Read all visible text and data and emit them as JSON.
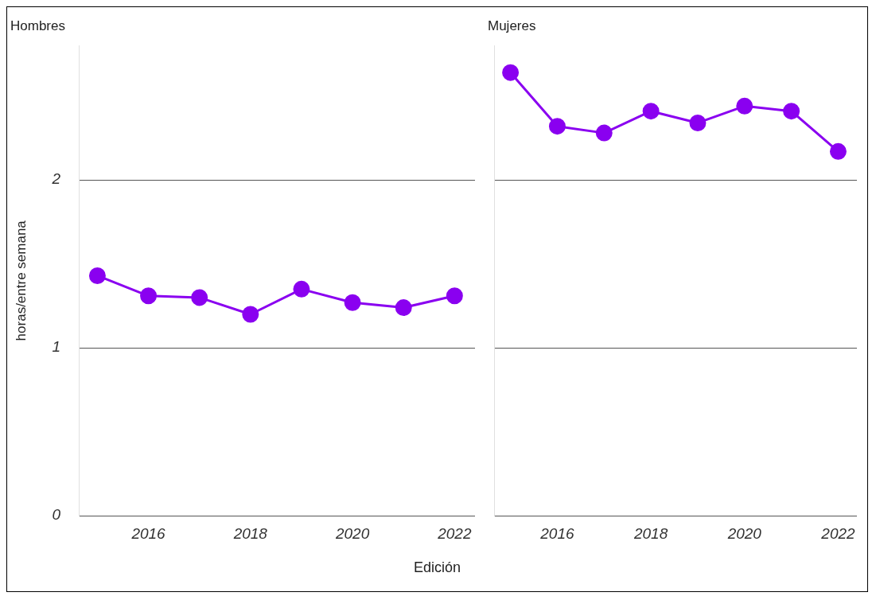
{
  "chart_data": [
    {
      "type": "line",
      "title": "Hombres",
      "ylabel": "horas/entre semana",
      "xlabel": "Edición",
      "x": [
        2015,
        2016,
        2017,
        2018,
        2019,
        2020,
        2021,
        2022
      ],
      "series": [
        {
          "color": "#8a00f0",
          "values": [
            1.43,
            1.31,
            1.3,
            1.2,
            1.35,
            1.27,
            1.24,
            1.31
          ]
        }
      ],
      "xlim": [
        2014.65,
        2022.4
      ],
      "xticks": [
        2016,
        2018,
        2020,
        2022
      ],
      "ylim": [
        0,
        2.8
      ],
      "yticks": [
        0,
        1,
        2
      ],
      "grid": "y",
      "legend": false,
      "marker": "circle",
      "line_style": "solid"
    },
    {
      "type": "line",
      "title": "Mujeres",
      "x": [
        2015,
        2016,
        2017,
        2018,
        2019,
        2020,
        2021,
        2022
      ],
      "series": [
        {
          "color": "#8a00f0",
          "values": [
            2.64,
            2.32,
            2.28,
            2.41,
            2.34,
            2.44,
            2.41,
            2.17
          ]
        }
      ],
      "xlim": [
        2014.65,
        2022.4
      ],
      "xticks": [
        2016,
        2018,
        2020,
        2022
      ],
      "ylim": [
        0,
        2.8
      ],
      "yticks": [
        0,
        1,
        2
      ],
      "grid": "y",
      "legend": false,
      "marker": "circle",
      "line_style": "solid",
      "tick_labels": "x"
    }
  ]
}
